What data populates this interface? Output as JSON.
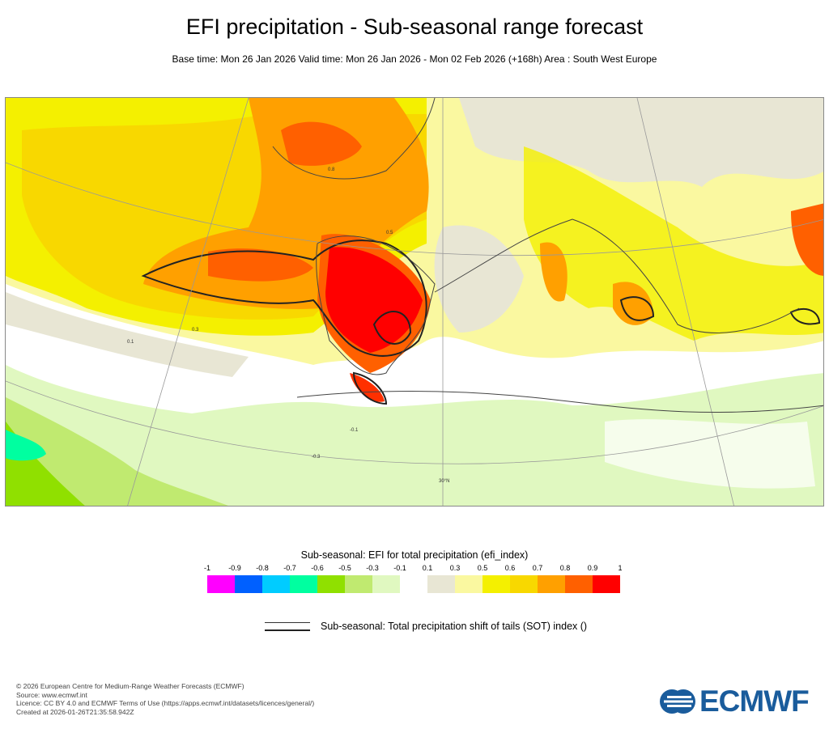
{
  "header": {
    "title": "EFI precipitation - Sub-seasonal range forecast",
    "subtitle": "Base time: Mon 26 Jan 2026 Valid time: Mon 26 Jan 2026 - Mon 02 Feb 2026 (+168h) Area : South West Europe"
  },
  "map": {
    "region": "South West Europe",
    "graticule_label": "30°N",
    "contour_labels": [
      "0.5",
      "0.8",
      "0.3",
      "0.1",
      "-0.1",
      "-0.3"
    ]
  },
  "legend": {
    "title": "Sub-seasonal: EFI for total precipitation (efi_index)",
    "ticks": [
      "-1",
      "-0.9",
      "-0.8",
      "-0.7",
      "-0.6",
      "-0.5",
      "-0.3",
      "-0.1",
      "0.1",
      "0.3",
      "0.5",
      "0.6",
      "0.7",
      "0.8",
      "0.9",
      "1"
    ],
    "colors": [
      "#ff00ff",
      "#0060ff",
      "#00ccff",
      "#00ffa0",
      "#90e000",
      "#c0ea70",
      "#e0f8c0",
      "#ffffff",
      "#e8e6d4",
      "#faf8a0",
      "#f4f000",
      "#f8d800",
      "#ffa000",
      "#ff6000",
      "#ff0000"
    ],
    "sot_label": "Sub-seasonal: Total precipitation shift of tails (SOT) index ()"
  },
  "footer": {
    "lines": [
      "© 2026 European Centre for Medium-Range Weather Forecasts (ECMWF)",
      "Source: www.ecmwf.int",
      "Licence: CC BY 4.0 and ECMWF Terms of Use (https://apps.ecmwf.int/datasets/licences/general/)",
      "Created at 2026-01-26T21:35:58.942Z"
    ],
    "logo": "ECMWF"
  }
}
